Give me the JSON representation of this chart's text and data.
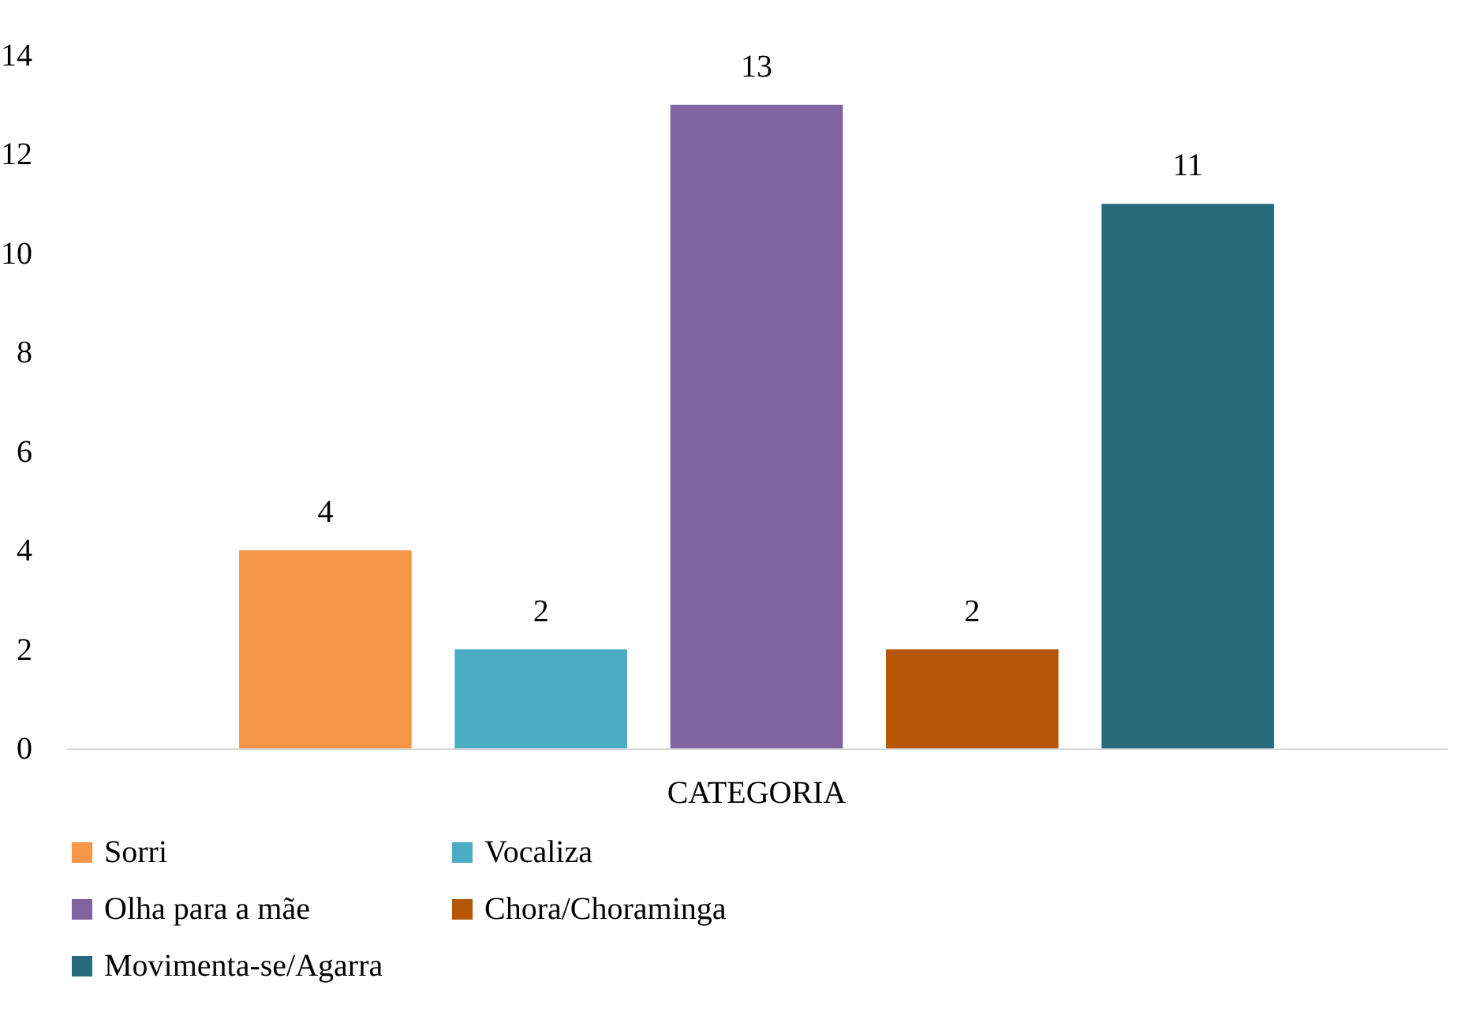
{
  "chart_data": {
    "type": "bar",
    "categories": [
      "CATEGORIA"
    ],
    "series": [
      {
        "name": "Sorri",
        "color": "#f79646",
        "values": [
          4
        ]
      },
      {
        "name": "Vocaliza",
        "color": "#4bacc6",
        "values": [
          2
        ]
      },
      {
        "name": "Olha para a mãe",
        "color": "#8064a2",
        "values": [
          13
        ]
      },
      {
        "name": "Chora/Choraminga",
        "color": "#b65708",
        "values": [
          2
        ]
      },
      {
        "name": "Movimenta-se/Agarra",
        "color": "#276a7c",
        "values": [
          11
        ]
      }
    ],
    "ylim": [
      0,
      14
    ],
    "yticks": [
      0,
      2,
      4,
      6,
      8,
      10,
      12,
      14
    ],
    "data_labels": true,
    "legend": "bottom",
    "grid": false
  }
}
